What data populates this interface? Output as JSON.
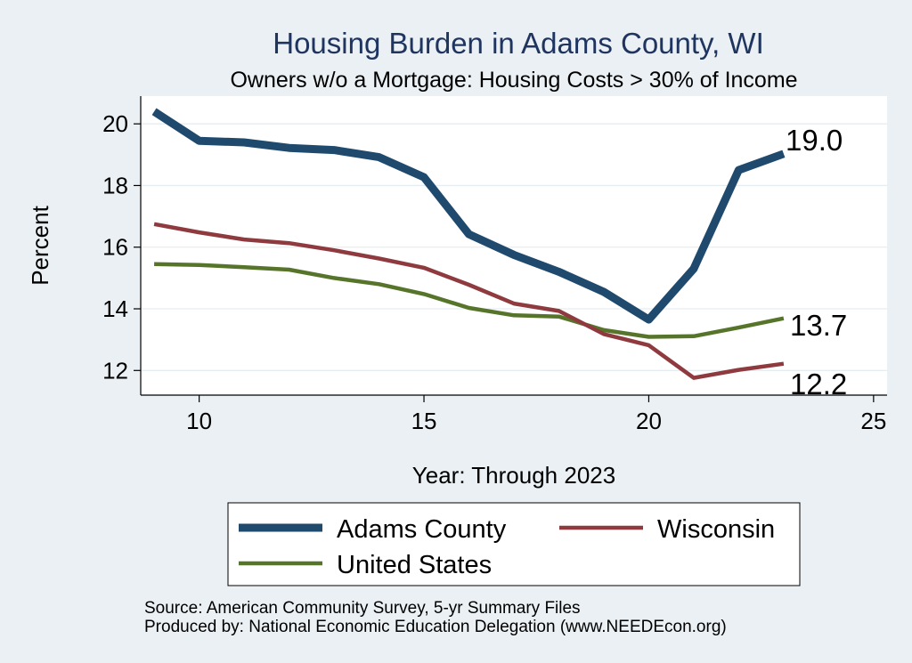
{
  "chart_data": {
    "type": "line",
    "title": "Housing Burden in Adams County, WI",
    "subtitle": "Owners w/o a Mortgage: Housing Costs > 30% of Income",
    "xlabel": "Year: Through 2023",
    "ylabel": "Percent",
    "xlim": [
      8.7,
      25.3
    ],
    "ylim": [
      11.2,
      20.9
    ],
    "xticks": [
      10,
      15,
      20,
      25
    ],
    "yticks": [
      12,
      14,
      16,
      18,
      20
    ],
    "x": [
      9,
      10,
      11,
      12,
      13,
      14,
      15,
      16,
      17,
      18,
      19,
      20,
      21,
      22,
      23
    ],
    "series": [
      {
        "name": "Adams County",
        "color": "#1f4a6e",
        "width": 9,
        "values": [
          20.4,
          19.45,
          19.4,
          19.22,
          19.15,
          18.92,
          18.27,
          16.42,
          15.75,
          15.2,
          14.55,
          13.65,
          15.3,
          18.5,
          19.03
        ]
      },
      {
        "name": "Wisconsin",
        "color": "#8f3a3e",
        "width": 4.5,
        "values": [
          16.75,
          16.48,
          16.25,
          16.13,
          15.9,
          15.63,
          15.33,
          14.78,
          14.17,
          13.93,
          13.18,
          12.82,
          11.76,
          12.02,
          12.22
        ]
      },
      {
        "name": "United States",
        "color": "#56752a",
        "width": 4.5,
        "values": [
          15.45,
          15.42,
          15.35,
          15.27,
          15.0,
          14.8,
          14.48,
          14.03,
          13.79,
          13.75,
          13.31,
          13.09,
          13.11,
          13.39,
          13.69
        ]
      }
    ],
    "end_labels": [
      "19.0",
      "12.2",
      "13.7"
    ],
    "legend": [
      "Adams County",
      "Wisconsin",
      "United States"
    ],
    "legend_position": "bottom",
    "grid": true
  },
  "notes": {
    "source": "Source: American Community Survey, 5-yr Summary Files",
    "producer": "Produced by: National Economic Education Delegation (www.NEEDEcon.org)"
  }
}
